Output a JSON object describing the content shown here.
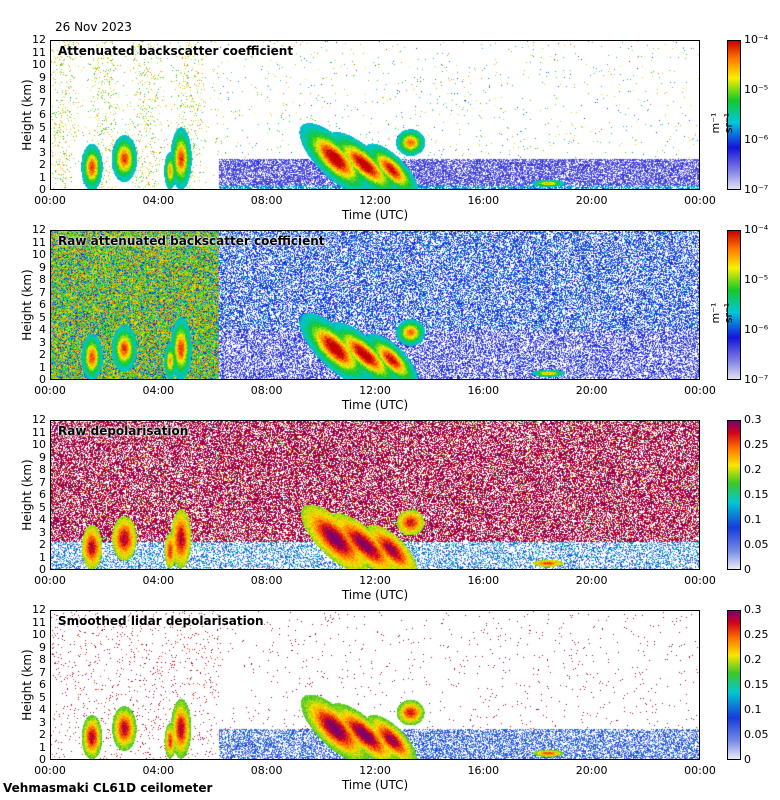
{
  "header": {
    "date": "26 Nov 2023"
  },
  "footer": {
    "instrument": "Vehmasmaki CL61D ceilometer"
  },
  "chart_data": [
    {
      "type": "heatmap",
      "title": "Attenuated backscatter coefficient",
      "xlabel": "Time (UTC)",
      "ylabel": "Height (km)",
      "xticks": [
        "00:00",
        "04:00",
        "08:00",
        "12:00",
        "16:00",
        "20:00",
        "00:00"
      ],
      "yticks": [
        "0",
        "1",
        "2",
        "3",
        "4",
        "5",
        "6",
        "7",
        "8",
        "9",
        "10",
        "11",
        "12"
      ],
      "ylim": [
        0,
        12
      ],
      "colorbar": {
        "scale": "log",
        "range": [
          1e-07,
          0.0001
        ],
        "ticks": [
          "10⁻⁷",
          "10⁻⁶",
          "10⁻⁵",
          "10⁻⁴"
        ],
        "unit": "m⁻¹ sr⁻¹"
      },
      "colormap": "jet"
    },
    {
      "type": "heatmap",
      "title": "Raw attenuated backscatter coefficient",
      "xlabel": "Time (UTC)",
      "ylabel": "Height (km)",
      "xticks": [
        "00:00",
        "04:00",
        "08:00",
        "12:00",
        "16:00",
        "20:00",
        "00:00"
      ],
      "yticks": [
        "0",
        "1",
        "2",
        "3",
        "4",
        "5",
        "6",
        "7",
        "8",
        "9",
        "10",
        "11",
        "12"
      ],
      "ylim": [
        0,
        12
      ],
      "colorbar": {
        "scale": "log",
        "range": [
          1e-07,
          0.0001
        ],
        "ticks": [
          "10⁻⁷",
          "10⁻⁶",
          "10⁻⁵",
          "10⁻⁴"
        ],
        "unit": "m⁻¹ sr⁻¹"
      },
      "colormap": "jet"
    },
    {
      "type": "heatmap",
      "title": "Raw depolarisation",
      "xlabel": "Time (UTC)",
      "ylabel": "Height (km)",
      "xticks": [
        "00:00",
        "04:00",
        "08:00",
        "12:00",
        "16:00",
        "20:00",
        "00:00"
      ],
      "yticks": [
        "0",
        "1",
        "2",
        "3",
        "4",
        "5",
        "6",
        "7",
        "8",
        "9",
        "10",
        "11",
        "12"
      ],
      "ylim": [
        0,
        12
      ],
      "colorbar": {
        "scale": "linear",
        "range": [
          0,
          0.3
        ],
        "ticks": [
          "0",
          "0.05",
          "0.1",
          "0.15",
          "0.2",
          "0.25",
          "0.3"
        ],
        "unit": ""
      },
      "colormap": "rainbow"
    },
    {
      "type": "heatmap",
      "title": "Smoothed lidar depolarisation",
      "xlabel": "Time (UTC)",
      "ylabel": "Height (km)",
      "xticks": [
        "00:00",
        "04:00",
        "08:00",
        "12:00",
        "16:00",
        "20:00",
        "00:00"
      ],
      "yticks": [
        "0",
        "1",
        "2",
        "3",
        "4",
        "5",
        "6",
        "7",
        "8",
        "9",
        "10",
        "11",
        "12"
      ],
      "ylim": [
        0,
        12
      ],
      "colorbar": {
        "scale": "linear",
        "range": [
          0,
          0.3
        ],
        "ticks": [
          "0",
          "0.05",
          "0.1",
          "0.15",
          "0.2",
          "0.25",
          "0.3"
        ],
        "unit": ""
      },
      "colormap": "rainbow"
    }
  ]
}
